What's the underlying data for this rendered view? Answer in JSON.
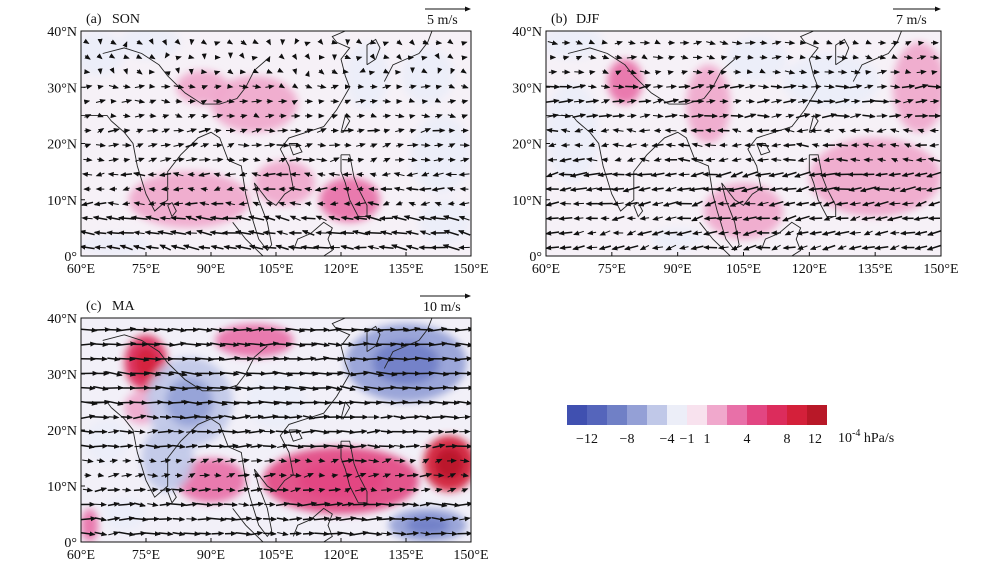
{
  "chart_data": [
    {
      "type": "map-vector-contour",
      "panel_label": "(a)",
      "title": "SON",
      "reference_vector": "5 m/s",
      "x_ticks": [
        "60°E",
        "75°E",
        "90°E",
        "105°E",
        "120°E",
        "135°E",
        "150°E"
      ],
      "y_ticks": [
        "0°",
        "10°N",
        "20°N",
        "30°N",
        "40°N"
      ],
      "xlim": [
        60,
        150
      ],
      "ylim": [
        0,
        40
      ],
      "anomalies": [
        {
          "lon": 64,
          "lat": 36,
          "value": -3,
          "rx": 6,
          "ry": 4
        },
        {
          "lon": 76,
          "lat": 38,
          "value": -2,
          "rx": 7,
          "ry": 3
        },
        {
          "lon": 100,
          "lat": 27,
          "value": 3,
          "rx": 10,
          "ry": 5
        },
        {
          "lon": 88,
          "lat": 30,
          "value": 2,
          "rx": 6,
          "ry": 3
        },
        {
          "lon": 85,
          "lat": 10,
          "value": 3,
          "rx": 14,
          "ry": 5
        },
        {
          "lon": 107,
          "lat": 13,
          "value": 2,
          "rx": 7,
          "ry": 4
        },
        {
          "lon": 122,
          "lat": 10,
          "value": 4,
          "rx": 7,
          "ry": 4
        },
        {
          "lon": 126,
          "lat": 32,
          "value": -3,
          "rx": 5,
          "ry": 6
        },
        {
          "lon": 140,
          "lat": 32,
          "value": -2,
          "rx": 6,
          "ry": 5
        },
        {
          "lon": 143,
          "lat": 18,
          "value": -2,
          "rx": 7,
          "ry": 7
        },
        {
          "lon": 144,
          "lat": 6,
          "value": -2,
          "rx": 6,
          "ry": 4
        },
        {
          "lon": 68,
          "lat": 2,
          "value": -2,
          "rx": 8,
          "ry": 2
        }
      ],
      "winds": {
        "seed": 11,
        "u": [
          -6,
          -4,
          4,
          3,
          1
        ],
        "v": [
          1,
          0,
          0.5,
          0,
          -0.5
        ]
      }
    },
    {
      "type": "map-vector-contour",
      "panel_label": "(b)",
      "title": "DJF",
      "reference_vector": "7 m/s",
      "x_ticks": [
        "60°E",
        "75°E",
        "90°E",
        "105°E",
        "120°E",
        "135°E",
        "150°E"
      ],
      "y_ticks": [
        "0°",
        "10°N",
        "20°N",
        "30°N",
        "40°N"
      ],
      "xlim": [
        60,
        150
      ],
      "ylim": [
        0,
        40
      ],
      "anomalies": [
        {
          "lon": 78,
          "lat": 31,
          "value": 4,
          "rx": 4,
          "ry": 4
        },
        {
          "lon": 97,
          "lat": 27,
          "value": 3,
          "rx": 5,
          "ry": 7
        },
        {
          "lon": 125,
          "lat": 31,
          "value": -3,
          "rx": 11,
          "ry": 5
        },
        {
          "lon": 108,
          "lat": 35,
          "value": -2,
          "rx": 7,
          "ry": 4
        },
        {
          "lon": 66,
          "lat": 38,
          "value": -3,
          "rx": 7,
          "ry": 3
        },
        {
          "lon": 66,
          "lat": 22,
          "value": -2,
          "rx": 6,
          "ry": 9
        },
        {
          "lon": 135,
          "lat": 14,
          "value": 3,
          "rx": 15,
          "ry": 7
        },
        {
          "lon": 105,
          "lat": 8,
          "value": 3,
          "rx": 9,
          "ry": 5
        },
        {
          "lon": 145,
          "lat": 30,
          "value": 2,
          "rx": 6,
          "ry": 8
        },
        {
          "lon": 90,
          "lat": 3,
          "value": -2,
          "rx": 6,
          "ry": 2
        }
      ],
      "winds": {
        "seed": 23,
        "u": [
          -5,
          -6,
          -4,
          5,
          3
        ],
        "v": [
          -1,
          -1,
          0,
          0.5,
          0
        ]
      }
    },
    {
      "type": "map-vector-contour",
      "panel_label": "(c)",
      "title": "MA",
      "reference_vector": "10 m/s",
      "x_ticks": [
        "60°E",
        "75°E",
        "90°E",
        "105°E",
        "120°E",
        "135°E",
        "150°E"
      ],
      "y_ticks": [
        "0°",
        "10°N",
        "20°N",
        "30°N",
        "40°N"
      ],
      "xlim": [
        60,
        150
      ],
      "ylim": [
        0,
        40
      ],
      "anomalies": [
        {
          "lon": 75,
          "lat": 32,
          "value": 9,
          "rx": 5,
          "ry": 5
        },
        {
          "lon": 100,
          "lat": 36,
          "value": 4,
          "rx": 9,
          "ry": 3
        },
        {
          "lon": 74,
          "lat": 24,
          "value": 3,
          "rx": 4,
          "ry": 3
        },
        {
          "lon": 85,
          "lat": 25,
          "value": -6,
          "rx": 10,
          "ry": 8
        },
        {
          "lon": 135,
          "lat": 32,
          "value": -8,
          "rx": 14,
          "ry": 7
        },
        {
          "lon": 105,
          "lat": 25,
          "value": -3,
          "rx": 7,
          "ry": 5
        },
        {
          "lon": 120,
          "lat": 11,
          "value": 6,
          "rx": 18,
          "ry": 6
        },
        {
          "lon": 145,
          "lat": 14,
          "value": 10,
          "rx": 6,
          "ry": 5
        },
        {
          "lon": 90,
          "lat": 11,
          "value": 4,
          "rx": 8,
          "ry": 4
        },
        {
          "lon": 80,
          "lat": 15,
          "value": -5,
          "rx": 6,
          "ry": 6
        },
        {
          "lon": 140,
          "lat": 3,
          "value": -7,
          "rx": 9,
          "ry": 3
        },
        {
          "lon": 70,
          "lat": 5,
          "value": -4,
          "rx": 5,
          "ry": 3
        },
        {
          "lon": 62,
          "lat": 3,
          "value": 4,
          "rx": 2,
          "ry": 3
        },
        {
          "lon": 66,
          "lat": 18,
          "value": -3,
          "rx": 5,
          "ry": 4
        }
      ],
      "winds": {
        "seed": 37,
        "u": [
          6,
          4,
          6,
          8,
          7
        ],
        "v": [
          0,
          0.5,
          0,
          -0.5,
          0
        ]
      }
    }
  ],
  "colorbar": {
    "colors": [
      "#4050b0",
      "#5565bb",
      "#7080c6",
      "#94a0d6",
      "#c0c8e8",
      "#eceef8",
      "#f8e2ee",
      "#f0a8cc",
      "#e870a8",
      "#e24682",
      "#dc2c5c",
      "#d4203a",
      "#b81828"
    ],
    "levels": [
      "-12",
      "-8",
      "-4",
      "-1",
      "1",
      "4",
      "8",
      "12"
    ],
    "unit": "10",
    "unit_exp": "-4",
    "unit_rest": " hPa/s"
  }
}
